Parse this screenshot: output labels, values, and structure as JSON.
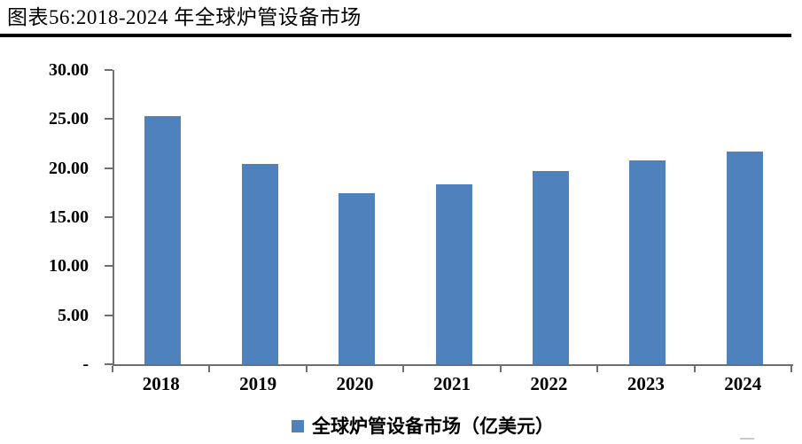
{
  "figure": {
    "title": "图表56:2018-2024 年全球炉管设备市场"
  },
  "chart_data": {
    "type": "bar",
    "title": "图表56:2018-2024 年全球炉管设备市场",
    "categories": [
      "2018",
      "2019",
      "2020",
      "2021",
      "2022",
      "2023",
      "2024"
    ],
    "values": [
      25.3,
      20.4,
      17.4,
      18.3,
      19.7,
      20.8,
      21.7
    ],
    "series_name": "全球炉管设备市场（亿美元）",
    "unit": "亿美元",
    "xlabel": "",
    "ylabel": "",
    "ylim": [
      0,
      30
    ],
    "ytick_step": 5,
    "ytick_labels": [
      "-",
      "5.00",
      "10.00",
      "15.00",
      "20.00",
      "25.00",
      "30.00"
    ],
    "grid": false,
    "legend_position": "bottom",
    "legend": [
      "全球炉管设备市场（亿美元）"
    ],
    "bar_color": "#4F81BD",
    "axis_color": "#6F6F6F",
    "title_rule_color": "#000000",
    "text_color": "#000000"
  },
  "legend": {
    "label": "全球炉管设备市场（亿美元）"
  }
}
